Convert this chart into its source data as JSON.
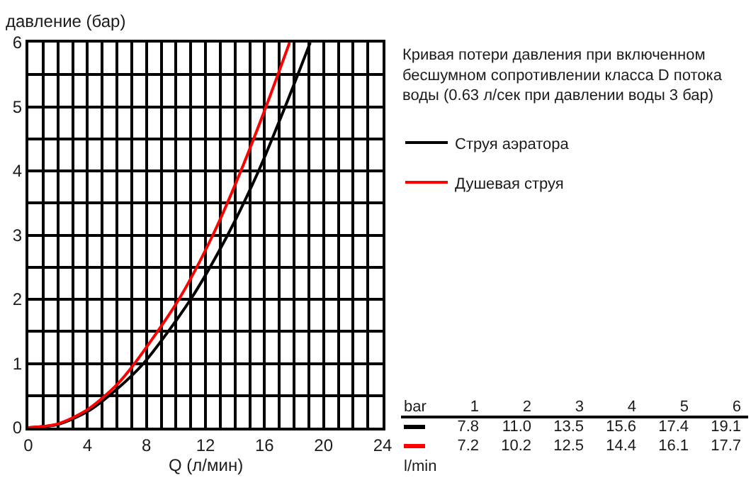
{
  "chart_data": {
    "type": "line",
    "title": "Кривая потери давления при включенном бесшумном сопротивлении класса D потока воды (0.63 л/сек при давлении воды 3 бар)",
    "xlabel": "Q (л/мин)",
    "ylabel": "давление (бар)",
    "series": [
      {
        "name": "Струя аэратора",
        "color": "#000000",
        "x": [
          0,
          2,
          4,
          6,
          7.8,
          11.0,
          13.5,
          15.6,
          17.4,
          19.1
        ],
        "values": [
          0,
          0.05,
          0.25,
          0.6,
          1,
          2,
          3,
          4,
          5,
          6
        ]
      },
      {
        "name": "Душевая струя",
        "color": "#ff0000",
        "x": [
          0,
          2,
          4,
          6,
          7.2,
          10.2,
          12.5,
          14.4,
          16.1,
          17.7
        ],
        "values": [
          0,
          0.06,
          0.28,
          0.67,
          1,
          2,
          3,
          4,
          5,
          6
        ]
      }
    ],
    "xlim": [
      0,
      24
    ],
    "ylim": [
      0,
      6
    ],
    "xticks": [
      0,
      {
        "value": 1,
        "label": null
      },
      {
        "value": 2,
        "label": null
      },
      {
        "value": 3,
        "label": null
      },
      4,
      {
        "value": 5,
        "label": null
      },
      {
        "value": 6,
        "label": null
      },
      {
        "value": 7,
        "label": null
      },
      8,
      {
        "value": 9,
        "label": null
      },
      {
        "value": 10,
        "label": null
      },
      {
        "value": 11,
        "label": null
      },
      12,
      {
        "value": 13,
        "label": null
      },
      {
        "value": 14,
        "label": null
      },
      {
        "value": 15,
        "label": null
      },
      16,
      {
        "value": 17,
        "label": null
      },
      {
        "value": 18,
        "label": null
      },
      {
        "value": 19,
        "label": null
      },
      20,
      {
        "value": 21,
        "label": null
      },
      {
        "value": 22,
        "label": null
      },
      {
        "value": 23,
        "label": null
      },
      24
    ],
    "yticks": [
      0,
      {
        "value": 0.5,
        "label": null
      },
      1,
      {
        "value": 1.5,
        "label": null
      },
      2,
      {
        "value": 2.5,
        "label": null
      },
      3,
      {
        "value": 3.5,
        "label": null
      },
      4,
      {
        "value": 4.5,
        "label": null
      },
      5,
      {
        "value": 5.5,
        "label": null
      },
      6
    ],
    "grid": true,
    "legend": "right",
    "annotations": [
      "bar",
      "1",
      "2",
      "3",
      "4",
      "5",
      "6",
      "7.8",
      "11.0",
      "13.5",
      "15.6",
      "17.4",
      "19.1",
      "7.2",
      "10.2",
      "12.5",
      "14.4",
      "16.1",
      "17.7",
      "l/min"
    ]
  }
}
